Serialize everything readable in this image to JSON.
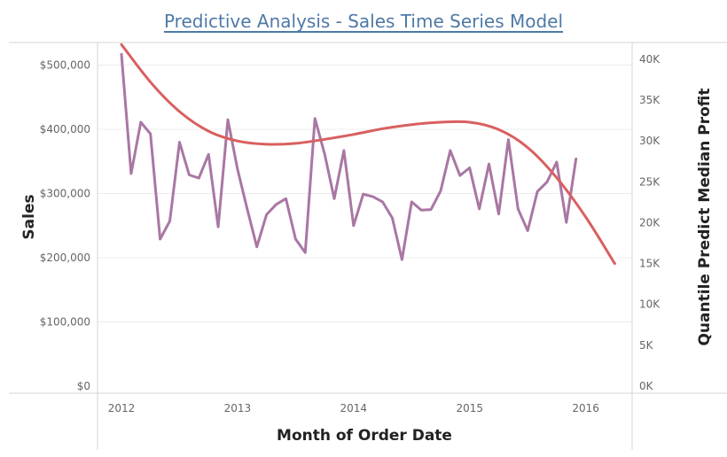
{
  "chart_data": {
    "type": "line",
    "title": "Predictive Analysis - Sales Time Series Model",
    "xlabel": "Month of Order Date",
    "ylabel": "Sales",
    "y2label": "Quantile Predict Median Profit",
    "x_ticks": [
      "2012",
      "2013",
      "2014",
      "2015",
      "2016"
    ],
    "x_range": [
      2012.0,
      2016.4
    ],
    "ylim": [
      0,
      560000
    ],
    "y_ticks": [
      0,
      100000,
      200000,
      300000,
      400000,
      500000
    ],
    "y_tick_labels": [
      "$0",
      "$100,000",
      "$200,000",
      "$300,000",
      "$400,000",
      "$500,000"
    ],
    "y2lim": [
      0,
      44000
    ],
    "y2_ticks": [
      0,
      5000,
      10000,
      15000,
      20000,
      25000,
      30000,
      35000,
      40000
    ],
    "y2_tick_labels": [
      "0K",
      "5K",
      "10K",
      "15K",
      "20K",
      "25K",
      "30K",
      "35K",
      "40K"
    ],
    "grid": "horizontal",
    "series": [
      {
        "axis": "left",
        "color": "#a977a4",
        "points": [
          [
            "2012-01",
            517000
          ],
          [
            "2012-02",
            331000
          ],
          [
            "2012-03",
            411000
          ],
          [
            "2012-04",
            393000
          ],
          [
            "2012-05",
            229000
          ],
          [
            "2012-06",
            257000
          ],
          [
            "2012-07",
            380000
          ],
          [
            "2012-08",
            329000
          ],
          [
            "2012-09",
            324000
          ],
          [
            "2012-10",
            361000
          ],
          [
            "2012-11",
            248000
          ],
          [
            "2012-12",
            415000
          ],
          [
            "2013-01",
            338000
          ],
          [
            "2013-02",
            276000
          ],
          [
            "2013-03",
            217000
          ],
          [
            "2013-04",
            267000
          ],
          [
            "2013-05",
            283000
          ],
          [
            "2013-06",
            292000
          ],
          [
            "2013-07",
            229000
          ],
          [
            "2013-08",
            208000
          ],
          [
            "2013-09",
            417000
          ],
          [
            "2013-10",
            362000
          ],
          [
            "2013-11",
            292000
          ],
          [
            "2013-12",
            367000
          ],
          [
            "2014-01",
            250000
          ],
          [
            "2014-02",
            299000
          ],
          [
            "2014-03",
            295000
          ],
          [
            "2014-04",
            287000
          ],
          [
            "2014-05",
            262000
          ],
          [
            "2014-06",
            197000
          ],
          [
            "2014-07",
            287000
          ],
          [
            "2014-08",
            274000
          ],
          [
            "2014-09",
            275000
          ],
          [
            "2014-10",
            304000
          ],
          [
            "2014-11",
            367000
          ],
          [
            "2014-12",
            328000
          ],
          [
            "2015-01",
            340000
          ],
          [
            "2015-02",
            276000
          ],
          [
            "2015-03",
            346000
          ],
          [
            "2015-04",
            268000
          ],
          [
            "2015-05",
            384000
          ],
          [
            "2015-06",
            276000
          ],
          [
            "2015-07",
            242000
          ],
          [
            "2015-08",
            303000
          ],
          [
            "2015-09",
            318000
          ],
          [
            "2015-10",
            349000
          ],
          [
            "2015-11",
            255000
          ],
          [
            "2015-12",
            354000
          ]
        ]
      },
      {
        "axis": "right",
        "color": "#d95f5f",
        "points": [
          [
            "2012-01",
            41800
          ],
          [
            "2012-04",
            37200
          ],
          [
            "2012-07",
            33600
          ],
          [
            "2012-10",
            31200
          ],
          [
            "2013-01",
            30000
          ],
          [
            "2013-04",
            29600
          ],
          [
            "2013-07",
            29700
          ],
          [
            "2013-10",
            30200
          ],
          [
            "2014-01",
            30800
          ],
          [
            "2014-04",
            31500
          ],
          [
            "2014-07",
            32000
          ],
          [
            "2014-10",
            32300
          ],
          [
            "2015-01",
            32300
          ],
          [
            "2015-04",
            31400
          ],
          [
            "2015-07",
            29200
          ],
          [
            "2015-10",
            25500
          ],
          [
            "2016-01",
            20700
          ],
          [
            "2016-04",
            15000
          ]
        ]
      }
    ]
  }
}
